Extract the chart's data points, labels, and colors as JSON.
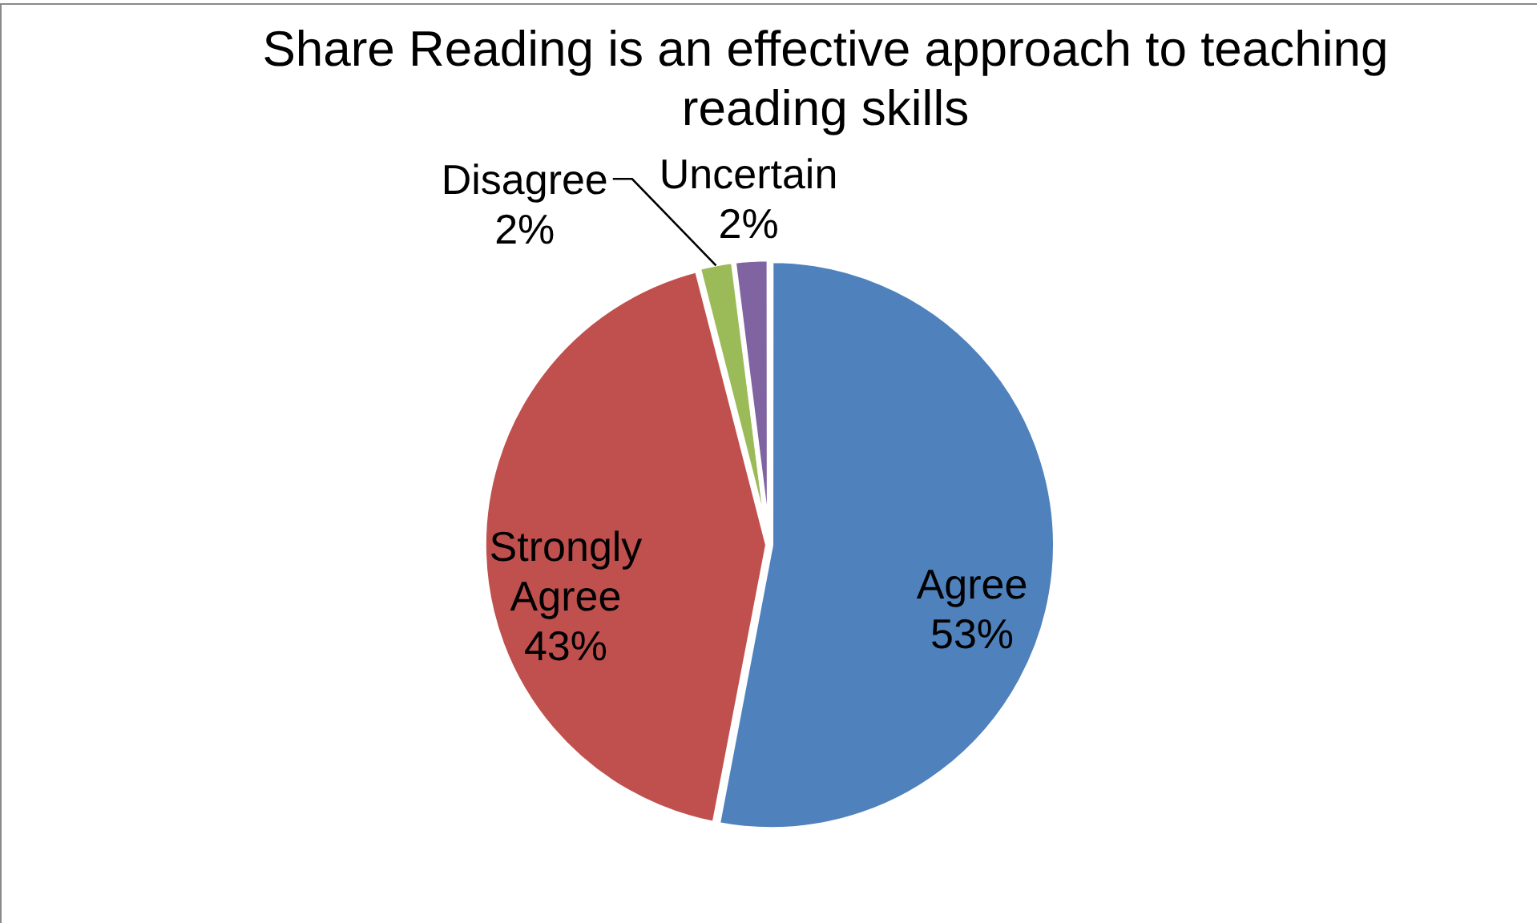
{
  "chart_data": {
    "type": "pie",
    "title": "Share Reading is an effective approach to teaching reading skills",
    "categories": [
      "Agree",
      "Strongly Agree",
      "Disagree",
      "Uncertain"
    ],
    "values": [
      53,
      43,
      2,
      2
    ],
    "colors": [
      "#4f81bd",
      "#c0504d",
      "#9bbb59",
      "#8064a2"
    ],
    "value_labels": [
      "53%",
      "43%",
      "2%",
      "2%"
    ]
  }
}
